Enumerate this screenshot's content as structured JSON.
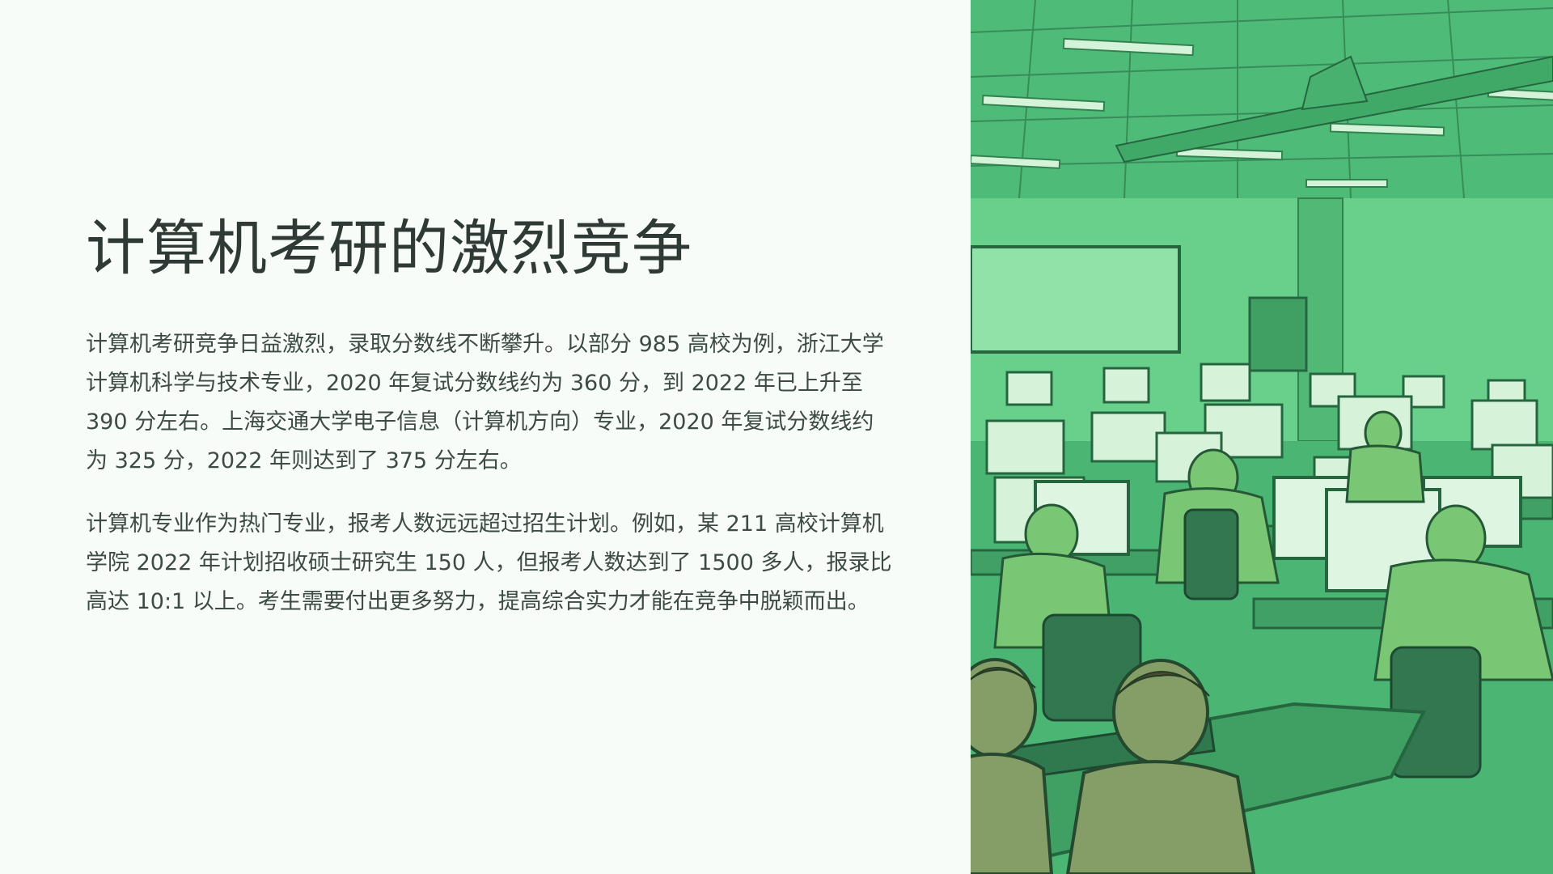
{
  "slide": {
    "title": "计算机考研的激烈竞争",
    "paragraphs": [
      "计算机考研竞争日益激烈，录取分数线不断攀升。以部分 985 高校为例，浙江大学计算机科学与技术专业，2020 年复试分数线约为 360 分，到 2022 年已上升至 390 分左右。上海交通大学电子信息（计算机方向）专业，2020 年复试分数线约为 325 分，2022 年则达到了 375 分左右。",
      "计算机专业作为热门专业，报考人数远远超过招生计划。例如，某 211 高校计算机学院 2022 年计划招收硕士研究生 150 人，但报考人数达到了 1500 多人，报录比高达 10:1 以上。考生需要付出更多努力，提高综合实力才能在竞争中脱颖而出。"
    ]
  },
  "image": {
    "subject": "computer-lab-illustration",
    "tint": "#4fbf78"
  }
}
